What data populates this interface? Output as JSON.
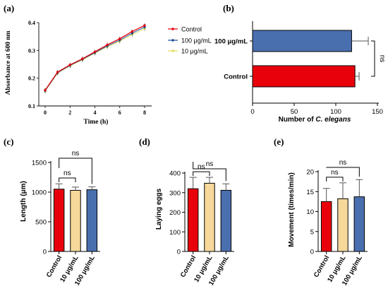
{
  "colors": {
    "control": "#e8000b",
    "dose100": "#4a6fae",
    "dose10": "#f5d89a",
    "line100": "#1f4e9a",
    "line10": "#e0e060",
    "axis": "#000000"
  },
  "chart_data": [
    {
      "panel": "(a)",
      "type": "line",
      "xlabel": "Time (h)",
      "ylabel": "Absorbance at 600 nm",
      "xlim": [
        0,
        8
      ],
      "ylim": [
        0.1,
        0.4
      ],
      "xticks": [
        "0",
        "2",
        "4",
        "6",
        "8"
      ],
      "yticks": [
        "0.1",
        "0.2",
        "0.3",
        "0.4"
      ],
      "x": [
        0,
        1,
        2,
        3,
        4,
        5,
        6,
        7,
        8
      ],
      "legend_position": "top-right",
      "series": [
        {
          "name": "Control",
          "values": [
            0.157,
            0.222,
            0.248,
            0.27,
            0.295,
            0.32,
            0.342,
            0.368,
            0.39
          ]
        },
        {
          "name": "100 μg/mL",
          "values": [
            0.155,
            0.22,
            0.246,
            0.268,
            0.292,
            0.316,
            0.337,
            0.362,
            0.384
          ]
        },
        {
          "name": "10 μg/mL",
          "values": [
            0.153,
            0.218,
            0.244,
            0.266,
            0.29,
            0.313,
            0.333,
            0.357,
            0.378
          ]
        }
      ]
    },
    {
      "panel": "(b)",
      "type": "bar",
      "orientation": "horizontal",
      "categories": [
        "100 μg/mL",
        "Control"
      ],
      "values": [
        119,
        123
      ],
      "errors": [
        20,
        5
      ],
      "xlabel_prefix": "Number of ",
      "xlabel_italic": "C. elegans",
      "xlim": [
        0,
        150
      ],
      "xticks": [
        "0",
        "50",
        "100",
        "150"
      ],
      "annotation": "ns"
    },
    {
      "panel": "(c)",
      "type": "bar",
      "categories": [
        "Control",
        "10 μg/mL",
        "100 μg/mL"
      ],
      "values": [
        1050,
        1030,
        1040
      ],
      "errors": [
        90,
        55,
        50
      ],
      "ylabel": "Length (μm)",
      "ylim": [
        0,
        1500
      ],
      "yticks": [
        "0",
        "500",
        "1000",
        "1500"
      ],
      "annotations": [
        "ns",
        "ns"
      ]
    },
    {
      "panel": "(d)",
      "type": "bar",
      "categories": [
        "Control",
        "10 μg/mL",
        "100 μg/mL"
      ],
      "values": [
        320,
        348,
        312
      ],
      "errors": [
        58,
        30,
        33
      ],
      "ylabel": "Laying eggs",
      "ylim": [
        0,
        400
      ],
      "yticks": [
        "0",
        "100",
        "200",
        "300",
        "400"
      ],
      "annotations": [
        "ns",
        "ns"
      ]
    },
    {
      "panel": "(e)",
      "type": "bar",
      "categories": [
        "Control",
        "10 μg/mL",
        "100 μg/mL"
      ],
      "values": [
        12.5,
        13.2,
        13.7
      ],
      "errors": [
        3.3,
        4.0,
        4.3
      ],
      "ylabel": "Movement (times/min)",
      "ylim": [
        0,
        20
      ],
      "yticks": [
        "0",
        "5",
        "10",
        "15",
        "20"
      ],
      "annotations": [
        "ns",
        "ns"
      ]
    }
  ]
}
